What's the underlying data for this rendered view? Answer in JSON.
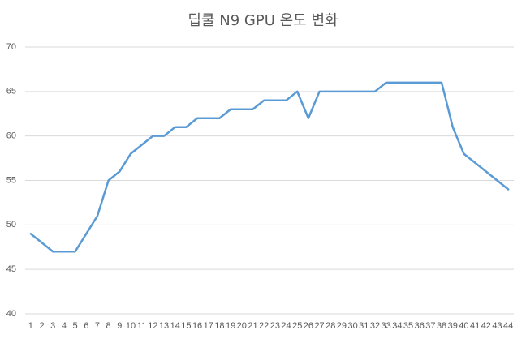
{
  "chart_data": {
    "type": "line",
    "title": "딥쿨 N9 GPU 온도 변화",
    "categories": [
      "1",
      "2",
      "3",
      "4",
      "5",
      "6",
      "7",
      "8",
      "9",
      "10",
      "11",
      "12",
      "13",
      "14",
      "15",
      "16",
      "17",
      "18",
      "19",
      "20",
      "21",
      "22",
      "23",
      "24",
      "25",
      "26",
      "27",
      "28",
      "29",
      "30",
      "31",
      "32",
      "33",
      "34",
      "35",
      "36",
      "37",
      "38",
      "39",
      "40",
      "41",
      "42",
      "43",
      "44"
    ],
    "values": [
      49,
      48,
      47,
      47,
      47,
      49,
      51,
      55,
      56,
      58,
      59,
      60,
      60,
      61,
      61,
      62,
      62,
      62,
      63,
      63,
      63,
      64,
      64,
      64,
      65,
      62,
      65,
      65,
      65,
      65,
      65,
      65,
      66,
      66,
      66,
      66,
      66,
      66,
      61,
      58,
      57,
      56,
      55,
      54
    ],
    "color": "#5b9bd5",
    "ylim": [
      40,
      70
    ],
    "yticks": [
      40,
      45,
      50,
      55,
      60,
      65,
      70
    ],
    "grid": true
  }
}
